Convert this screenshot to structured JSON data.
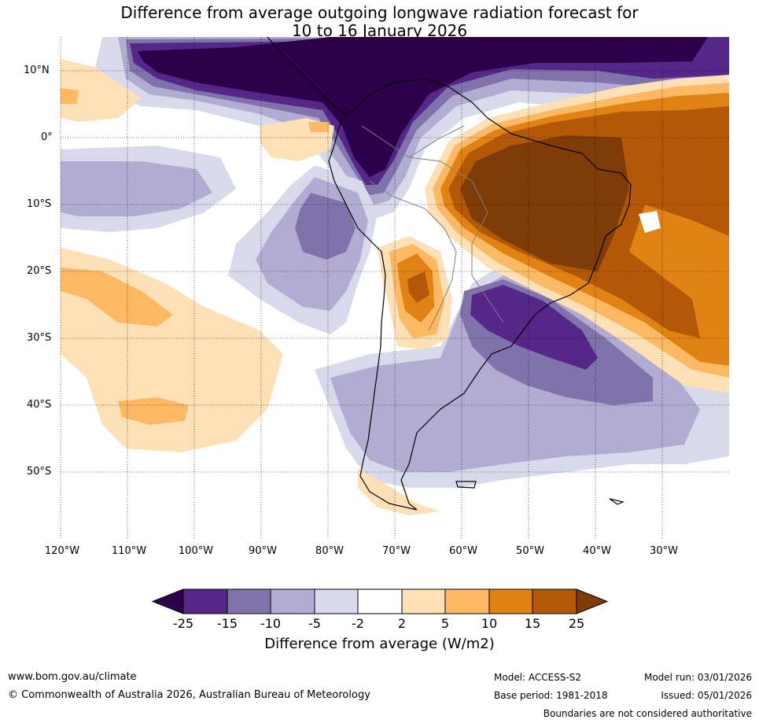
{
  "title": {
    "line1": "Difference from average outgoing longwave radiation forecast for",
    "line2": "10 to 16 January 2026"
  },
  "map": {
    "lat_labels": [
      "10°N",
      "0°",
      "10°S",
      "20°S",
      "30°S",
      "40°S",
      "50°S"
    ],
    "lon_labels": [
      "120°W",
      "110°W",
      "100°W",
      "90°W",
      "80°W",
      "70°W",
      "60°W",
      "50°W",
      "40°W",
      "30°W"
    ]
  },
  "colorbar": {
    "ticks": [
      "-25",
      "-15",
      "-10",
      "-5",
      "-2",
      "2",
      "5",
      "10",
      "15",
      "25"
    ],
    "colors": {
      "below_min": "#2d004b",
      "c1": "#542788",
      "c2": "#8073ac",
      "c3": "#b2abd2",
      "c4": "#d8daeb",
      "c5": "#ffffff",
      "c6": "#fee0b6",
      "c7": "#fdb863",
      "c8": "#e08214",
      "c9": "#b35806",
      "above_max": "#7f3b08"
    },
    "label": "Difference from average (W/m2)"
  },
  "footer": {
    "website": "www.bom.gov.au/climate",
    "copyright": "© Commonwealth of Australia 2026, Australian Bureau of Meteorology",
    "model": "Model: ACCESS-S2",
    "base_period": "Base period: 1981-2018",
    "model_run": "Model run: 03/01/2026",
    "issued": "Issued: 05/01/2026",
    "disclaimer": "Boundaries are not considered authoritative"
  }
}
